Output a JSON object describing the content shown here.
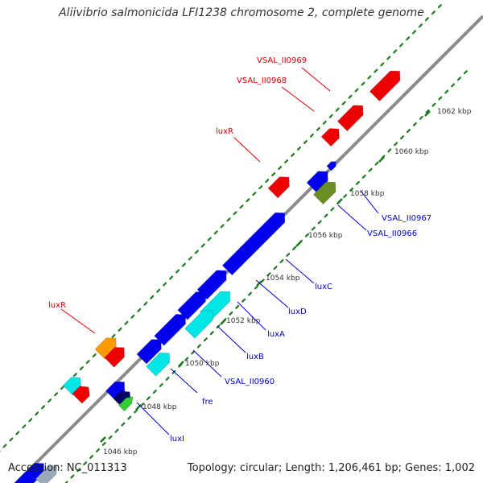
{
  "title": "Aliivibrio salmonicida LFI1238 chromosome 2, complete genome",
  "accession": "Accession: NC_011313",
  "topology": "Topology: circular; Length: 1,206,461 bp; Genes: 1,002",
  "colors": {
    "backbone": "#8c8c8c",
    "tick_major": "#1f7a1f",
    "tick_minor": "#1f7a1f",
    "gene_blue": "#0000ee",
    "gene_red": "#ee0000",
    "gene_cyan": "#00e5e5",
    "gene_orange": "#ff9900",
    "gene_olive": "#6b8e23",
    "gene_green": "#33cc33",
    "gene_navy": "#000066",
    "label_red": "#dd0000",
    "label_blue": "#0000cc"
  },
  "scale_labels": [
    "1046 kbp",
    "1048 kbp",
    "1050 kbp",
    "1052 kbp",
    "1054 kbp",
    "1056 kbp",
    "1058 kbp",
    "1060 kbp",
    "1062 kbp"
  ],
  "gene_labels": {
    "left": [
      "VSAL_II0969",
      "VSAL_II0968",
      "luxR",
      "luxR"
    ],
    "right": [
      "VSAL_II0967",
      "VSAL_II0966",
      "luxC",
      "luxD",
      "luxA",
      "luxB",
      "VSAL_II0960",
      "fre",
      "luxI"
    ]
  }
}
